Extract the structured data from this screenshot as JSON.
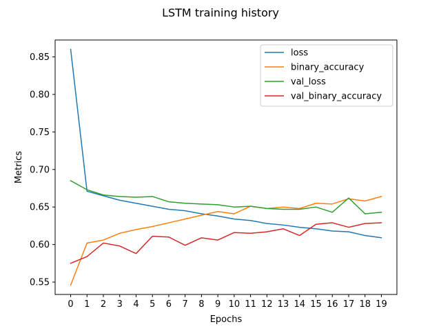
{
  "chart_data": {
    "type": "line",
    "title": "LSTM training history",
    "xlabel": "Epochs",
    "ylabel": "Metrics",
    "x": [
      0,
      1,
      2,
      3,
      4,
      5,
      6,
      7,
      8,
      9,
      10,
      11,
      12,
      13,
      14,
      15,
      16,
      17,
      18,
      19
    ],
    "xlim": [
      -0.95,
      19.95
    ],
    "ylim": [
      0.5335,
      0.8725
    ],
    "yticks": [
      0.55,
      0.6,
      0.65,
      0.7,
      0.75,
      0.8,
      0.85
    ],
    "grid": false,
    "legend_position": "top-right",
    "series": [
      {
        "name": "loss",
        "color": "#1f77b4",
        "values": [
          0.86,
          0.671,
          0.665,
          0.659,
          0.655,
          0.651,
          0.647,
          0.645,
          0.641,
          0.638,
          0.634,
          0.632,
          0.628,
          0.626,
          0.623,
          0.621,
          0.618,
          0.617,
          0.612,
          0.609
        ]
      },
      {
        "name": "binary_accuracy",
        "color": "#ff7f0e",
        "values": [
          0.546,
          0.602,
          0.606,
          0.615,
          0.62,
          0.624,
          0.629,
          0.634,
          0.639,
          0.644,
          0.641,
          0.651,
          0.648,
          0.65,
          0.648,
          0.655,
          0.654,
          0.661,
          0.658,
          0.664
        ]
      },
      {
        "name": "val_loss",
        "color": "#2ca02c",
        "values": [
          0.685,
          0.673,
          0.666,
          0.664,
          0.663,
          0.664,
          0.657,
          0.655,
          0.654,
          0.653,
          0.65,
          0.651,
          0.648,
          0.647,
          0.647,
          0.65,
          0.643,
          0.662,
          0.641,
          0.643
        ]
      },
      {
        "name": "val_binary_accuracy",
        "color": "#d62728",
        "values": [
          0.575,
          0.584,
          0.602,
          0.598,
          0.588,
          0.611,
          0.61,
          0.599,
          0.609,
          0.606,
          0.616,
          0.615,
          0.617,
          0.621,
          0.612,
          0.627,
          0.629,
          0.623,
          0.628,
          0.629
        ]
      }
    ]
  }
}
